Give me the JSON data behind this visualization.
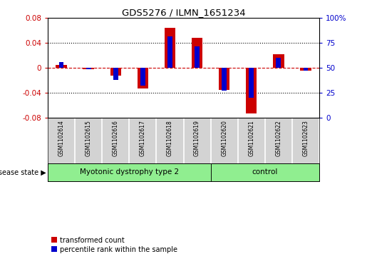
{
  "title": "GDS5276 / ILMN_1651234",
  "samples": [
    "GSM1102614",
    "GSM1102615",
    "GSM1102616",
    "GSM1102617",
    "GSM1102618",
    "GSM1102619",
    "GSM1102620",
    "GSM1102621",
    "GSM1102622",
    "GSM1102623"
  ],
  "transformed_count": [
    0.005,
    -0.002,
    -0.012,
    -0.033,
    0.065,
    0.048,
    -0.035,
    -0.073,
    0.022,
    -0.004
  ],
  "percentile_rank_pct": [
    56,
    49,
    38,
    32,
    82,
    72,
    27,
    20,
    60,
    47
  ],
  "group_boundary": 6,
  "group1_label": "Myotonic dystrophy type 2",
  "group2_label": "control",
  "group_color": "#90ee90",
  "left_ylim": [
    -0.08,
    0.08
  ],
  "right_ylim": [
    0,
    100
  ],
  "left_yticks": [
    -0.08,
    -0.04,
    0,
    0.04,
    0.08
  ],
  "right_yticks": [
    0,
    25,
    50,
    75,
    100
  ],
  "left_yticklabels": [
    "-0.08",
    "-0.04",
    "0",
    "0.04",
    "0.08"
  ],
  "right_yticklabels": [
    "0",
    "25",
    "50",
    "75",
    "100%"
  ],
  "bar_color": "#cc0000",
  "blue_color": "#0000cc",
  "dotted_zero_color": "#cc0000",
  "plot_bg_color": "#ffffff",
  "label_box_color": "#d3d3d3",
  "legend_red_label": "transformed count",
  "legend_blue_label": "percentile rank within the sample",
  "disease_state_label": "disease state"
}
